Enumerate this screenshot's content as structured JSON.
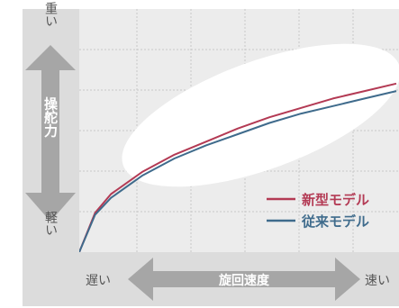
{
  "colors": {
    "background": "#ffffff",
    "axis_band": "#dcdcdc",
    "plot_background": "#ececec",
    "grid": "#c8c8c8",
    "arrow": "#a6a6a6",
    "arrow_text": "#ffffff",
    "side_text": "#555555",
    "highlight": "#ffffff",
    "series_new": "#b33a54",
    "series_old": "#3f6b8c"
  },
  "chart_data": {
    "type": "line",
    "title": "",
    "xlabel": "旋回速度",
    "ylabel": "操舵力",
    "x_low_label": "遅い",
    "x_high_label": "速い",
    "y_high_label": "重い",
    "y_low_label": "軽い",
    "xlim": [
      0,
      1
    ],
    "ylim": [
      0,
      1
    ],
    "grid": true,
    "legend_position": "right-lower",
    "series": [
      {
        "name": "新型モデル",
        "color": "#b33a54",
        "points": [
          [
            0,
            0
          ],
          [
            0.05,
            0.21
          ],
          [
            0.1,
            0.31
          ],
          [
            0.2,
            0.43
          ],
          [
            0.3,
            0.52
          ],
          [
            0.4,
            0.59
          ],
          [
            0.5,
            0.66
          ],
          [
            0.6,
            0.72
          ],
          [
            0.7,
            0.77
          ],
          [
            0.8,
            0.82
          ],
          [
            0.9,
            0.86
          ],
          [
            1.0,
            0.9
          ]
        ]
      },
      {
        "name": "従来モデル",
        "color": "#3f6b8c",
        "points": [
          [
            0,
            0
          ],
          [
            0.05,
            0.2
          ],
          [
            0.1,
            0.29
          ],
          [
            0.2,
            0.41
          ],
          [
            0.3,
            0.5
          ],
          [
            0.4,
            0.57
          ],
          [
            0.5,
            0.63
          ],
          [
            0.6,
            0.69
          ],
          [
            0.7,
            0.74
          ],
          [
            0.8,
            0.78
          ],
          [
            0.9,
            0.82
          ],
          [
            1.0,
            0.86
          ]
        ]
      }
    ]
  }
}
